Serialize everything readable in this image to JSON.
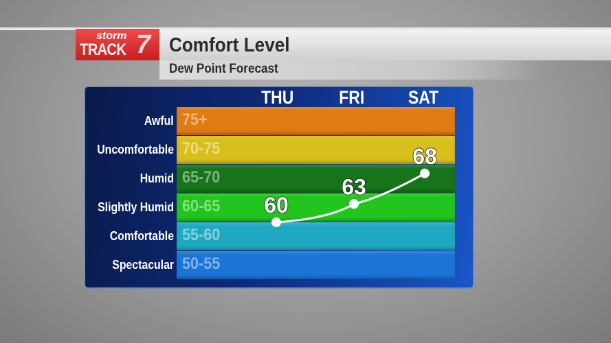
{
  "logo": {
    "line1": "storm",
    "line2": "TRACK",
    "line3": "7"
  },
  "header": {
    "title": "Comfort Level",
    "subtitle": "Dew Point Forecast"
  },
  "chart_data": {
    "type": "line",
    "title": "Comfort Level",
    "subtitle": "Dew Point Forecast",
    "categories": [
      "THU",
      "FRI",
      "SAT"
    ],
    "values": [
      60,
      63,
      68
    ],
    "bands": [
      {
        "label": "Awful",
        "range": "75+",
        "color": "#e07a12"
      },
      {
        "label": "Uncomfortable",
        "range": "70-75",
        "color": "#d9bf1c"
      },
      {
        "label": "Humid",
        "range": "65-70",
        "color": "#16741a"
      },
      {
        "label": "Slightly Humid",
        "range": "60-65",
        "color": "#22c41e"
      },
      {
        "label": "Comfortable",
        "range": "55-60",
        "color": "#1fa9c0"
      },
      {
        "label": "Spectacular",
        "range": "50-55",
        "color": "#1b74d6"
      }
    ],
    "ylim": [
      50,
      80
    ]
  }
}
